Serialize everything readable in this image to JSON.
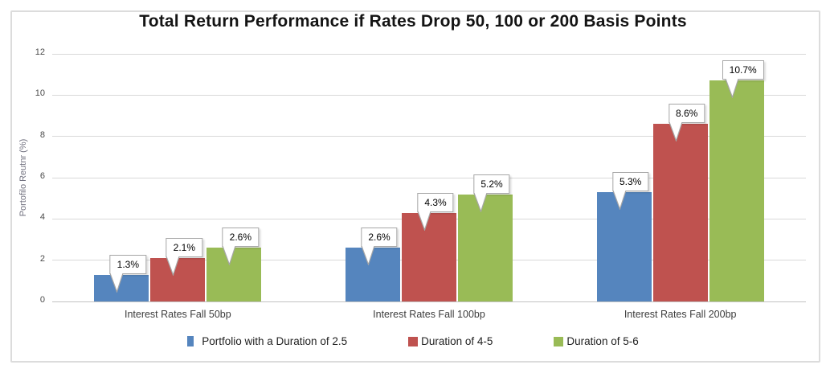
{
  "chart_data": {
    "type": "bar",
    "title": "Total Return Performance if Rates Drop 50, 100 or 200 Basis Points",
    "ylabel": "Portofilo Reutnr (%)",
    "categories": [
      "Interest Rates Fall 50bp",
      "Interest Rates Fall 100bp",
      "Interest Rates Fall 200bp"
    ],
    "series": [
      {
        "name": "Portfolio with a Duration of 2.5",
        "color": "#5585BE",
        "values": [
          1.3,
          2.6,
          5.3
        ],
        "labels": [
          "1.3%",
          "2.6%",
          "5.3%"
        ]
      },
      {
        "name": "Duration of 4-5",
        "color": "#BF524F",
        "values": [
          2.1,
          4.3,
          8.6
        ],
        "labels": [
          "2.1%",
          "4.3%",
          "8.6%"
        ]
      },
      {
        "name": "Duration of 5-6",
        "color": "#99BB56",
        "values": [
          2.6,
          5.2,
          10.7
        ],
        "labels": [
          "2.6%",
          "5.2%",
          "10.7%"
        ]
      }
    ],
    "ylim": [
      0,
      12
    ],
    "yticks": [
      0,
      2,
      4,
      6,
      8,
      10,
      12
    ],
    "grid": true,
    "legend_position": "bottom",
    "data_label_style": "callout",
    "colors": {
      "gridline": "#d9d9d9",
      "axis_line": "#c2c2c2",
      "callout_border": "#a6a6a6",
      "frame_border": "#dcdcdc"
    }
  }
}
